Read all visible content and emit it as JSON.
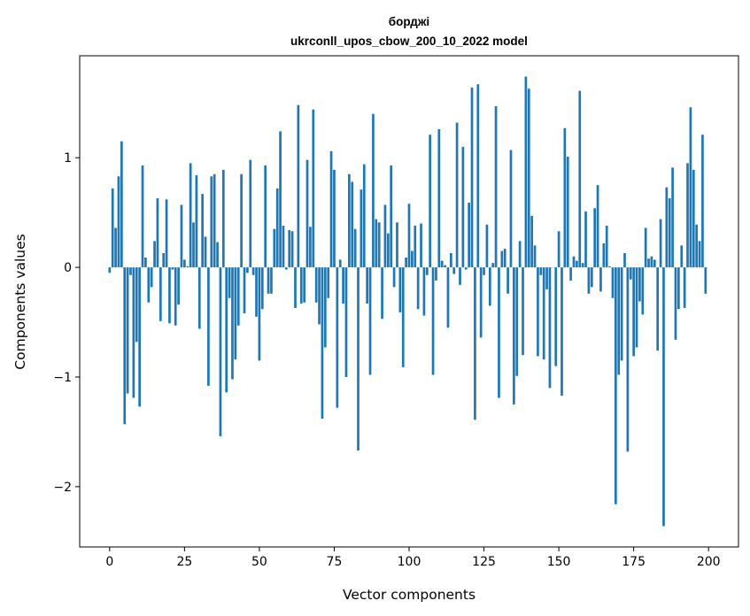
{
  "chart_data": {
    "type": "bar",
    "title": [
      "борджі",
      "ukrconll_upos_cbow_200_10_2022 model"
    ],
    "xlabel": "Vector components",
    "ylabel": "Components values",
    "xlim": [
      -10,
      210
    ],
    "ylim": [
      -2.55,
      1.93
    ],
    "xticks": [
      0,
      25,
      50,
      75,
      100,
      125,
      150,
      175,
      200
    ],
    "xtick_labels": [
      "0",
      "25",
      "50",
      "75",
      "100",
      "125",
      "150",
      "175",
      "200"
    ],
    "yticks": [
      -2,
      -1,
      0,
      1
    ],
    "ytick_labels": [
      "−2",
      "−1",
      "0",
      "1"
    ],
    "grid": false,
    "color": "#1f77b4",
    "values": [
      -0.05,
      0.72,
      0.36,
      0.83,
      1.15,
      -1.43,
      -1.15,
      -0.07,
      -1.19,
      -0.68,
      -1.27,
      0.93,
      0.09,
      -0.32,
      -0.18,
      0.24,
      0.63,
      -0.49,
      0.13,
      0.62,
      -0.51,
      -0.02,
      -0.53,
      -0.34,
      0.57,
      0.07,
      0.01,
      0.95,
      0.41,
      0.84,
      -0.56,
      0.67,
      0.28,
      -1.08,
      0.83,
      0.85,
      0.23,
      -1.54,
      0.89,
      -1.14,
      -0.28,
      -1.02,
      -0.84,
      -0.53,
      0.85,
      -0.42,
      -0.05,
      0.98,
      -0.07,
      -0.45,
      -0.85,
      -0.38,
      0.93,
      -0.24,
      -0.24,
      0.35,
      0.72,
      1.24,
      0.38,
      -0.02,
      0.34,
      0.33,
      -0.37,
      1.48,
      -0.33,
      -0.32,
      0.98,
      0.37,
      1.44,
      -0.32,
      -0.52,
      -1.38,
      -0.73,
      -0.28,
      1.06,
      0.89,
      -1.28,
      0.07,
      -0.33,
      -1.0,
      0.85,
      0.78,
      0.35,
      -1.67,
      0.71,
      0.94,
      -0.33,
      -0.98,
      1.4,
      0.44,
      0.41,
      -0.47,
      0.57,
      0.31,
      0.93,
      -0.18,
      0.41,
      -0.41,
      -0.91,
      0.09,
      0.58,
      0.15,
      0.38,
      -0.38,
      0.4,
      -0.44,
      -0.07,
      1.21,
      -0.98,
      -0.12,
      1.26,
      0.06,
      0.02,
      -0.55,
      0.13,
      -0.06,
      1.32,
      -0.16,
      1.1,
      -0.02,
      0.59,
      1.64,
      -1.39,
      1.67,
      -0.64,
      -0.07,
      0.39,
      -0.35,
      0.04,
      1.47,
      -1.19,
      0.15,
      0.17,
      -0.24,
      1.07,
      -1.25,
      -0.99,
      0.24,
      -0.8,
      1.74,
      1.63,
      0.47,
      0.2,
      -0.81,
      -0.07,
      -0.84,
      -0.2,
      -1.1,
      0.0,
      -0.9,
      0.33,
      -1.17,
      1.27,
      1.01,
      -0.12,
      0.1,
      0.06,
      1.61,
      0.04,
      0.51,
      -0.24,
      -0.18,
      0.54,
      0.75,
      -0.22,
      0.22,
      0.38,
      0.01,
      -0.28,
      -2.16,
      -0.98,
      -0.85,
      0.13,
      -1.68,
      -0.11,
      -0.81,
      -0.73,
      -0.31,
      -0.43,
      0.36,
      0.08,
      0.1,
      0.07,
      -0.76,
      0.44,
      -2.36,
      0.73,
      0.63,
      0.91,
      -0.66,
      -0.38,
      0.2,
      -0.37,
      0.95,
      1.46,
      0.89,
      0.39,
      0.24,
      1.21,
      -0.24
    ]
  }
}
